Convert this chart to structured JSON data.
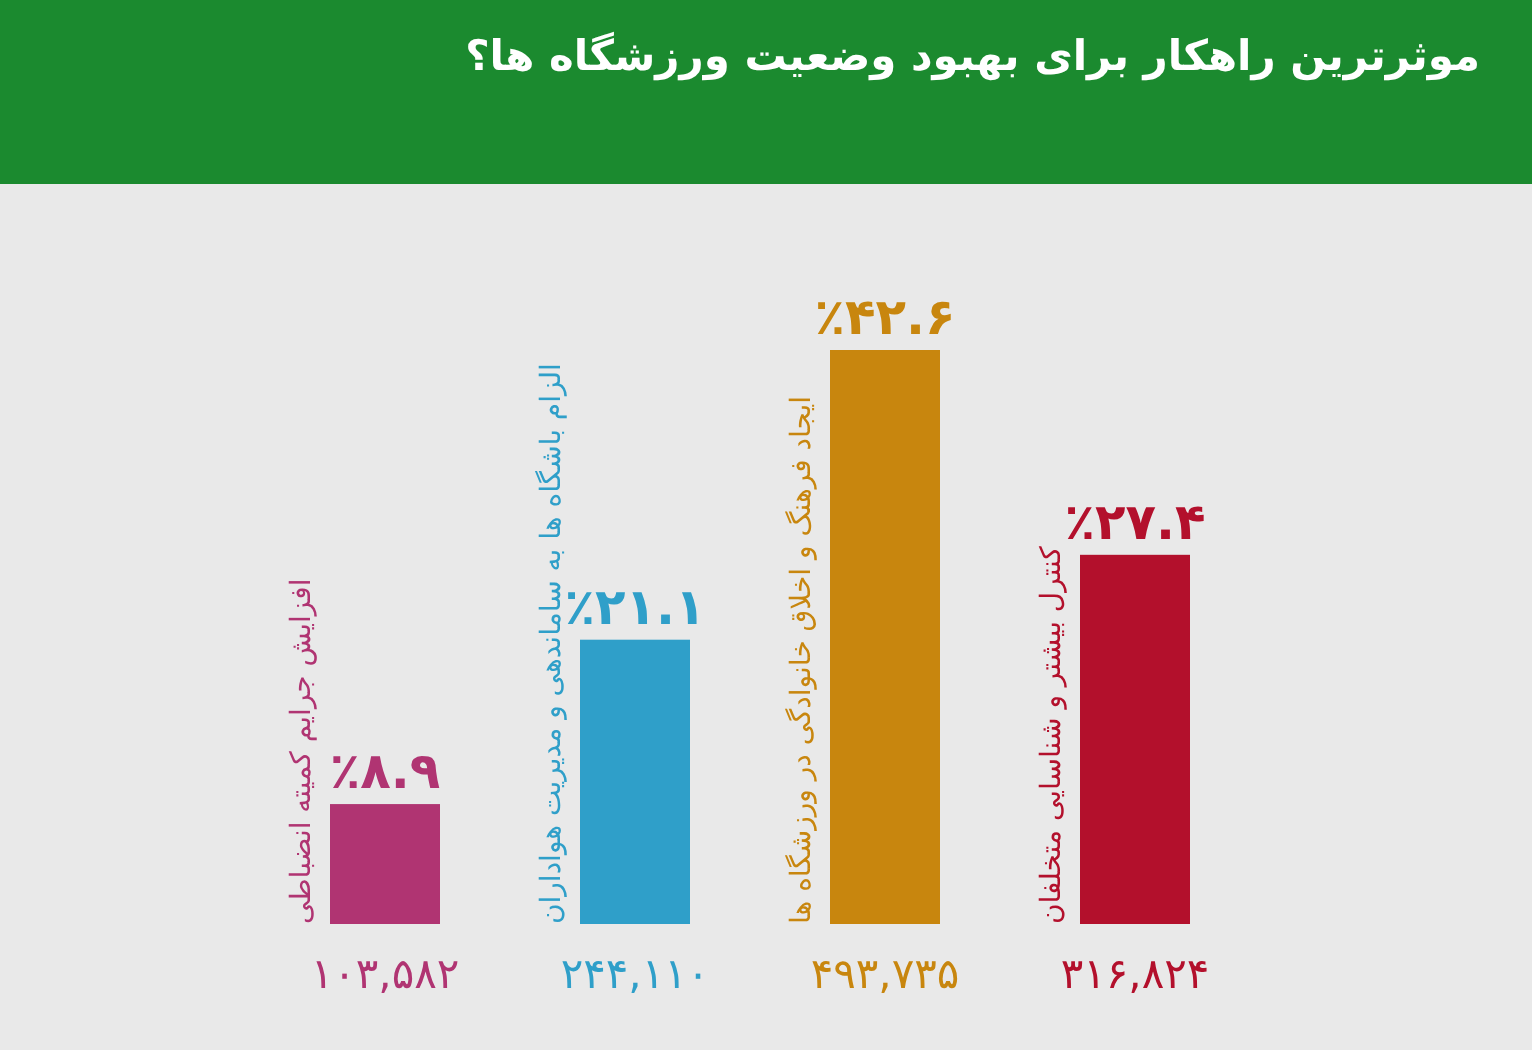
{
  "chart_data": {
    "type": "bar",
    "title": "موثرترین راهکار برای بهبود وضعیت ورزشگاه ها؟",
    "categories": [
      "افزایش جرایم کمیته انضباطی",
      "الزام باشگاه ها به ساماندهی و مدیریت هواداران",
      "ایجاد فرهنگ و اخلاق خانوادگی در ورزشگاه ها",
      "کنترل بیشتر و شناسایی متخلفان"
    ],
    "values": [
      8.9,
      21.1,
      42.6,
      27.4
    ],
    "colors": [
      "#b03472",
      "#2f9fc9",
      "#c8860e",
      "#b3102c"
    ],
    "value_labels": [
      "٪۸.۹",
      "٪۲۱.۱",
      "٪۴۲.۶",
      "٪۲۷.۴"
    ],
    "annotations": [
      "۱۰۳,۵۸۲",
      "۲۴۴,۱۱۰",
      "۴۹۳,۷۳۵",
      "۳۱۶,۸۲۴"
    ]
  }
}
